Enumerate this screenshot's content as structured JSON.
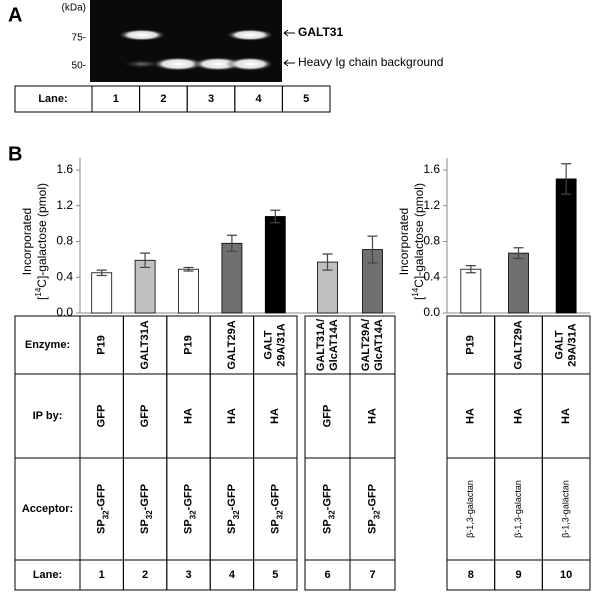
{
  "panel_a": {
    "label": "A",
    "unit": "(kDa)",
    "markers": [
      "75-",
      "50-"
    ],
    "bands": [
      "GALT31",
      "Heavy Ig chain background"
    ],
    "lane_header": "Lane:",
    "lanes": [
      "1",
      "2",
      "3",
      "4",
      "5"
    ]
  },
  "panel_b": {
    "label": "B",
    "row_headers": [
      "Enzyme:",
      "IP by:",
      "Acceptor:",
      "Lane:"
    ]
  },
  "chart_data": [
    {
      "type": "bar",
      "y_label": {
        "line1": "Incorporated",
        "open": "[",
        "sup": "14",
        "close": "C]-galactose (pmol)"
      },
      "categories": [
        "1",
        "2",
        "3",
        "4",
        "5",
        "6",
        "7"
      ],
      "values": [
        0.45,
        0.59,
        0.49,
        0.78,
        1.08,
        0.57,
        0.71
      ],
      "errors": [
        0.03,
        0.08,
        0.02,
        0.09,
        0.07,
        0.09,
        0.15
      ],
      "colors": [
        "#ffffff",
        "#c0c0c0",
        "#ffffff",
        "#707070",
        "#000000",
        "#c0c0c0",
        "#707070"
      ],
      "ylim": [
        0,
        1.6
      ],
      "yticks": [
        {
          "value": 0,
          "label": "0.0"
        },
        0.4,
        0.8,
        1.2,
        1.6
      ],
      "enzyme": [
        [
          "P19"
        ],
        [
          "GALT31A"
        ],
        [
          "P19"
        ],
        [
          "GALT29A"
        ],
        [
          "GALT",
          "29A/31A"
        ],
        [
          "GALT31A/",
          "GlcAT14A"
        ],
        [
          "GALT29A/",
          "GlcAT14A"
        ]
      ],
      "ip_by": [
        "GFP",
        "GFP",
        "HA",
        "HA",
        "HA",
        "GFP",
        "HA"
      ],
      "acceptor": [
        {
          "base": "SP",
          "sub": "32",
          "rest": "-GFP"
        },
        {
          "base": "SP",
          "sub": "32",
          "rest": "-GFP"
        },
        {
          "base": "SP",
          "sub": "32",
          "rest": "-GFP"
        },
        {
          "base": "SP",
          "sub": "32",
          "rest": "-GFP"
        },
        {
          "base": "SP",
          "sub": "32",
          "rest": "-GFP"
        },
        {
          "base": "SP",
          "sub": "32",
          "rest": "-GFP"
        },
        {
          "base": "SP",
          "sub": "32",
          "rest": "-GFP"
        }
      ]
    },
    {
      "type": "bar",
      "y_label": {
        "line1": "Incorporated",
        "open": "[",
        "sup": "14",
        "close": "C]-galactose (pmol)"
      },
      "categories": [
        "8",
        "9",
        "10"
      ],
      "values": [
        0.49,
        0.67,
        1.5
      ],
      "errors": [
        0.04,
        0.06,
        0.17
      ],
      "colors": [
        "#ffffff",
        "#707070",
        "#000000"
      ],
      "ylim": [
        0,
        1.6
      ],
      "yticks": [
        {
          "value": 0,
          "label": "0.0"
        },
        0.4,
        0.8,
        1.2,
        1.6
      ],
      "enzyme": [
        [
          "P19"
        ],
        [
          "GALT29A"
        ],
        [
          "GALT",
          "29A/31A"
        ]
      ],
      "ip_by": [
        "HA",
        "HA",
        "HA"
      ],
      "acceptor": [
        "β-1,3-galactan",
        "β-1,3-galactan",
        "β-1,3-galactan"
      ]
    }
  ]
}
